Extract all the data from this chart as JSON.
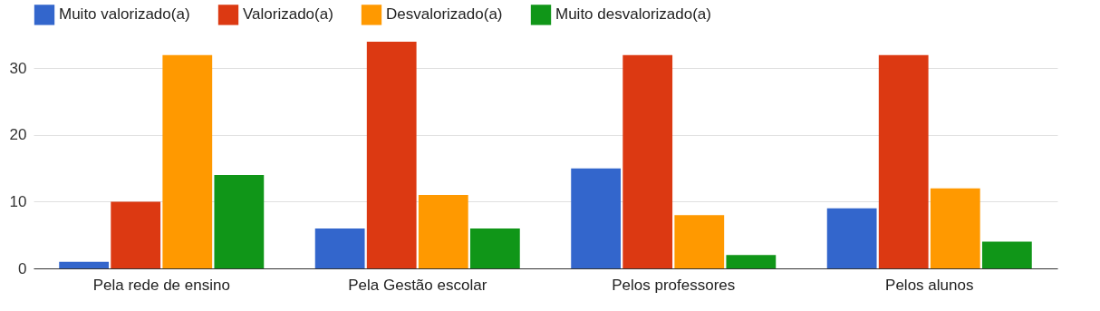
{
  "chart_data": {
    "type": "bar",
    "categories": [
      "Pela rede de ensino",
      "Pela Gestão escolar",
      "Pelos professores",
      "Pelos alunos"
    ],
    "series": [
      {
        "name": "Muito valorizado(a)",
        "color": "#3366cc",
        "values": [
          1,
          6,
          15,
          9
        ]
      },
      {
        "name": "Valorizado(a)",
        "color": "#dc3912",
        "values": [
          10,
          34,
          32,
          32
        ]
      },
      {
        "name": "Desvalorizado(a)",
        "color": "#ff9900",
        "values": [
          32,
          11,
          8,
          12
        ]
      },
      {
        "name": "Muito desvalorizado(a)",
        "color": "#109618",
        "values": [
          14,
          6,
          2,
          4
        ]
      }
    ],
    "ylim": [
      0,
      34
    ],
    "yticks": [
      0,
      10,
      20,
      30
    ],
    "grid": "y",
    "legend": "top"
  }
}
